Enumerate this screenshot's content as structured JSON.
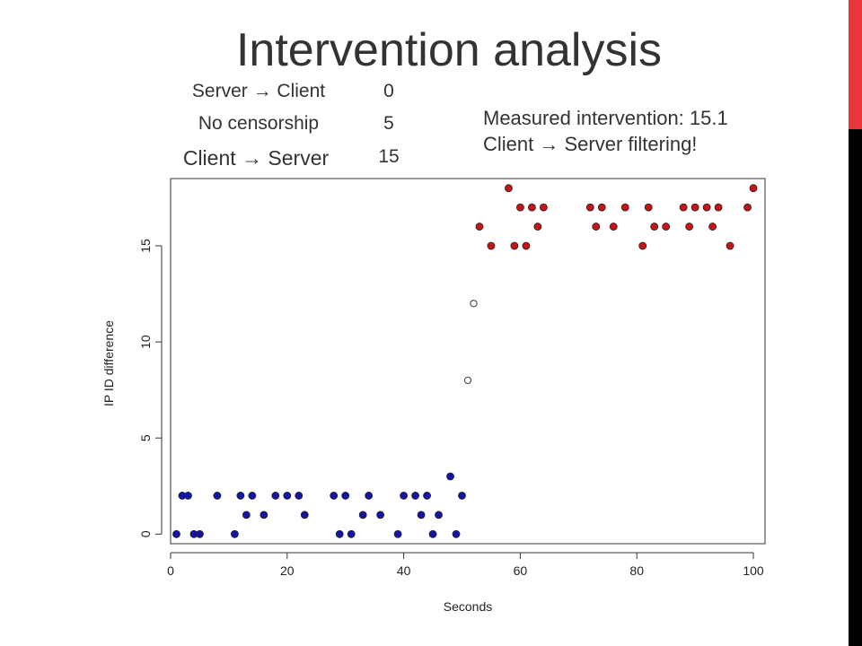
{
  "slide": {
    "title": "Intervention analysis"
  },
  "legend": [
    {
      "label": "Server → Client",
      "value": "0"
    },
    {
      "label": "No censorship",
      "value": "5"
    },
    {
      "label": "Client → Server",
      "value": "15"
    }
  ],
  "annotation": {
    "line1": "Measured intervention: 15.1",
    "line2": "Client → Server filtering!"
  },
  "colors": {
    "accent_bar": "#e8363a",
    "side_bar": "#000000",
    "blue_points": "#1414a8",
    "red_points": "#c81414",
    "transition_points": "#888888"
  },
  "chart_data": {
    "type": "scatter",
    "title": "",
    "xlabel": "Seconds",
    "ylabel": "IP ID difference",
    "xlim": [
      0,
      102
    ],
    "ylim": [
      -0.5,
      18.5
    ],
    "xticks": [
      0,
      20,
      40,
      60,
      80,
      100
    ],
    "yticks": [
      0,
      5,
      10,
      15
    ],
    "grid": false,
    "series": [
      {
        "style": "filled",
        "color": "#1414a8",
        "x": [
          1,
          2,
          3,
          4,
          5,
          8,
          11,
          12,
          13,
          14,
          16,
          18,
          20,
          22,
          23,
          28,
          29,
          30,
          31,
          33,
          34,
          36,
          39,
          40,
          42,
          43,
          44,
          45,
          46,
          48,
          49,
          50
        ],
        "y": [
          0,
          2,
          2,
          0,
          0,
          2,
          0,
          2,
          1,
          2,
          1,
          2,
          2,
          2,
          1,
          2,
          0,
          2,
          0,
          1,
          2,
          1,
          0,
          2,
          2,
          1,
          2,
          0,
          1,
          3,
          0,
          2
        ]
      },
      {
        "style": "open",
        "color": "#888888",
        "x": [
          51,
          52
        ],
        "y": [
          8,
          12
        ]
      },
      {
        "style": "filled",
        "color": "#c81414",
        "x": [
          53,
          55,
          58,
          59,
          60,
          61,
          62,
          63,
          64,
          72,
          73,
          74,
          76,
          78,
          81,
          82,
          83,
          85,
          88,
          89,
          90,
          92,
          93,
          94,
          96,
          99,
          100
        ],
        "y": [
          16,
          15,
          18,
          15,
          17,
          15,
          17,
          16,
          17,
          17,
          16,
          17,
          16,
          17,
          15,
          17,
          16,
          16,
          17,
          16,
          17,
          17,
          16,
          17,
          15,
          17,
          18
        ]
      }
    ]
  }
}
